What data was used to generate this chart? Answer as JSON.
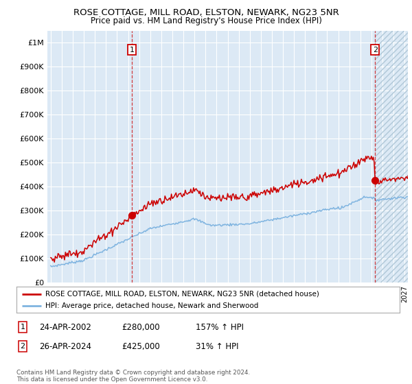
{
  "title": "ROSE COTTAGE, MILL ROAD, ELSTON, NEWARK, NG23 5NR",
  "subtitle": "Price paid vs. HM Land Registry's House Price Index (HPI)",
  "bg_color": "#dce9f5",
  "grid_color": "#ffffff",
  "hpi_color": "#7fb4e0",
  "property_color": "#cc0000",
  "legend_label1": "ROSE COTTAGE, MILL ROAD, ELSTON, NEWARK, NG23 5NR (detached house)",
  "legend_label2": "HPI: Average price, detached house, Newark and Sherwood",
  "table_row1": [
    "1",
    "24-APR-2002",
    "£280,000",
    "157% ↑ HPI"
  ],
  "table_row2": [
    "2",
    "26-APR-2024",
    "£425,000",
    "31% ↑ HPI"
  ],
  "footer": "Contains HM Land Registry data © Crown copyright and database right 2024.\nThis data is licensed under the Open Government Licence v3.0.",
  "xmin": 1994.7,
  "xmax": 2027.3,
  "ymin": 0,
  "ymax": 1050000,
  "yticks": [
    0,
    100000,
    200000,
    300000,
    400000,
    500000,
    600000,
    700000,
    800000,
    900000,
    1000000
  ],
  "ytick_labels": [
    "£0",
    "£100K",
    "£200K",
    "£300K",
    "£400K",
    "£500K",
    "£600K",
    "£700K",
    "£800K",
    "£900K",
    "£1M"
  ],
  "sale1_year": 2002.31,
  "sale1_value": 280000,
  "sale2_year": 2024.33,
  "sale2_value": 425000,
  "hatch_start": 2024.33,
  "hatch_end": 2027.3
}
